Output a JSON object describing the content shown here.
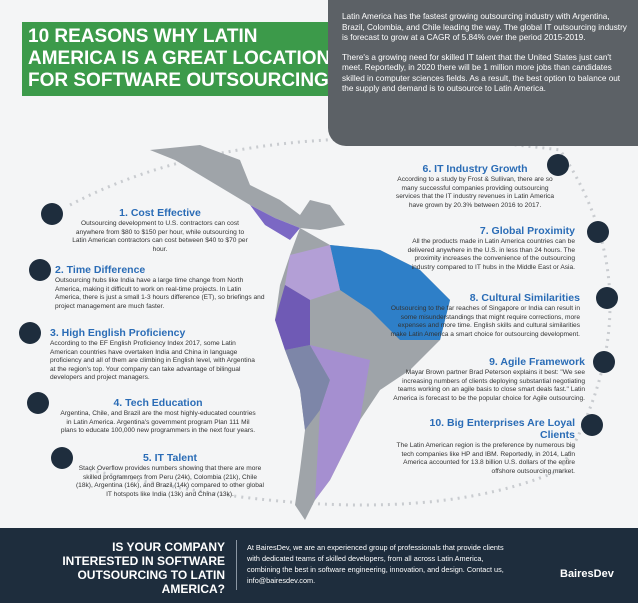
{
  "header": {
    "title_lines": [
      "10 REASONS WHY LATIN",
      "AMERICA IS A GREAT LOCATION",
      "FOR SOFTWARE OUTSOURCING"
    ]
  },
  "intro": {
    "paragraphs": [
      "Latin America has the fastest growing outsourcing industry with Argentina, Brazil, Colombia, and Chile leading the way. The global IT outsourcing industry is forecast to grow at a CAGR of 5.84% over the period 2015-2019.",
      "There's a growing need for skilled IT talent that the United States just can't meet. Reportedly, in 2020 there will be 1 million more jobs than candidates skilled in computer sciences fields. As a result, the best option to balance out the supply and demand is to outsource to Latin America."
    ]
  },
  "reasons": [
    {
      "title": "1. Cost Effective",
      "text": "Outsourcing development to U.S. contractors can cost anywhere from $80 to $150 per hour, while outsourcing to Latin American contractors can cost between $40 to $70 per hour."
    },
    {
      "title": "2. Time Difference",
      "text": "Outsourcing hubs like India have a large time change from North America, making it difficult to work on real-time projects. In Latin America, there is just a small 1-3 hours difference (ET), so briefings and project management are much faster."
    },
    {
      "title": "3. High English Proficiency",
      "text": "According to the EF English Proficiency Index 2017, some Latin American countries have overtaken India and China in language proficiency and all of them are climbing in English level, with Argentina at the region's top. Your company can take advantage of bilingual developers and project managers."
    },
    {
      "title": "4. Tech Education",
      "text": "Argentina, Chile, and Brazil are the most highly-educated countries in Latin America. Argentina's government program Plan 111 Mil plans to educate 100,000 new programmers in the next four years."
    },
    {
      "title": "5. IT Talent",
      "text": "Stack Overflow provides numbers showing that there are more skilled programmers from Peru (24k), Colombia (21k), Chile (18k), Argentina (16k), and Brazil (14k) compared to other global IT hotspots like India (13k) and China (13k)."
    },
    {
      "title": "6. IT Industry Growth",
      "text": "According to a study by Frost & Sullivan, there are so many successful companies providing outsourcing services that the IT industry revenues in Latin America have grown by 20.3% between 2016 to 2017."
    },
    {
      "title": "7. Global Proximity",
      "text": "All the products made in Latin America countries can be delivered anywhere in the U.S. in less than 24 hours. The proximity increases the convenience of the outsourcing industry compared to IT hubs in the Middle East or Asia."
    },
    {
      "title": "8. Cultural Similarities",
      "text": "Outsourcing to the far reaches of Singapore or India can result in some misunderstandings that might require corrections, more expenses and more time. English skills and cultural similarities make Latin America a smart choice for outsourcing development."
    },
    {
      "title": "9. Agile Framework",
      "text": "Mayar Brown partner Brad Peterson explains it best: \"We see increasing numbers of clients deploying substantial negotiating teams working on an agile basis to close smart deals fast.\" Latin America is forecast to be the popular choice for Agile outsourcing."
    },
    {
      "title": "10. Big Enterprises Are Loyal Clients",
      "text": "The Latin American region is the preference by numerous big tech companies like HP and IBM. Reportedly, in 2014, Latin America accounted for 13.8 billion U.S. dollars of the entire offshore outsourcing market."
    }
  ],
  "footer": {
    "question": "IS YOUR COMPANY INTERESTED IN SOFTWARE OUTSOURCING TO LATIN AMERICA?",
    "text": "At BairesDev, we are an experienced group of professionals that provide clients with dedicated teams of skilled developers, from all across Latin America, combining the best in software engineering, innovation, and design. Contact us, info@bairesdev.com.",
    "brand": "BairesDev"
  }
}
